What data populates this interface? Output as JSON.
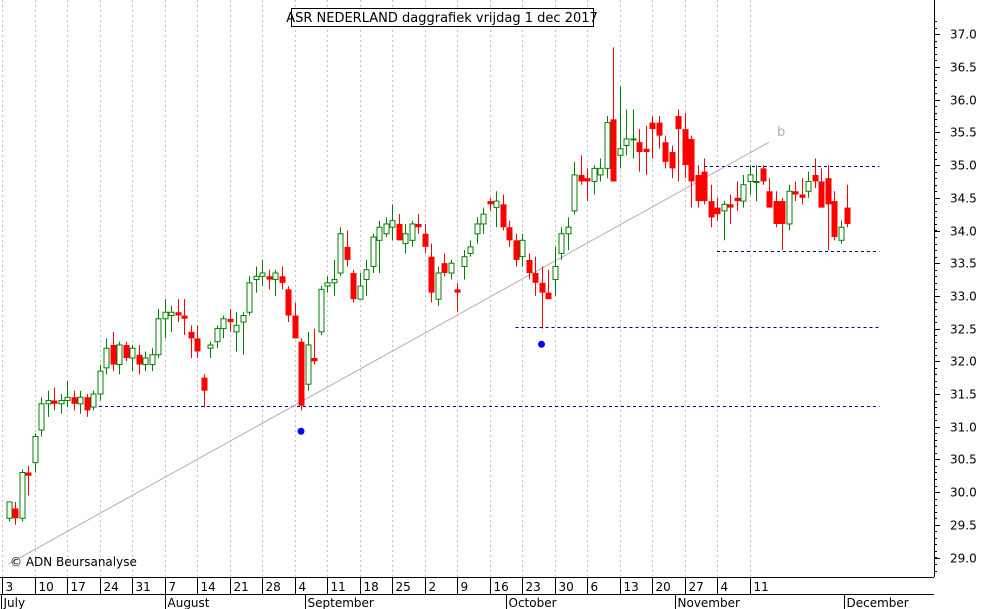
{
  "chart_data": {
    "type": "candlestick",
    "title": "ASR NEDERLAND daggrafiek vrijdag 1 dec 2017",
    "copyright": "© ADN Beursanalyse",
    "ylim": [
      28.7,
      37.35
    ],
    "y_ticks": [
      "29.0",
      "29.5",
      "30.0",
      "30.5",
      "31.0",
      "31.5",
      "32.0",
      "32.5",
      "33.0",
      "33.5",
      "34.0",
      "34.5",
      "35.0",
      "35.5",
      "36.0",
      "36.5",
      "37.0"
    ],
    "x_day_labels": [
      "3",
      "10",
      "17",
      "24",
      "31",
      "7",
      "14",
      "21",
      "28",
      "4",
      "11",
      "18",
      "25",
      "2",
      "9",
      "16",
      "23",
      "30",
      "6",
      "13",
      "20",
      "27",
      "4",
      "11"
    ],
    "months": [
      "July",
      "August",
      "September",
      "October",
      "November",
      "December"
    ],
    "annotation_label": "b",
    "colors": {
      "up_border": "#008000",
      "down_fill": "#ff0000",
      "marker": "#0000ff",
      "trend": "#b0b0b0",
      "level": "#000080",
      "grid": "#c0c0c0"
    },
    "trend_line": [
      [
        0,
        28.9
      ],
      [
        117,
        35.35
      ]
    ],
    "horizontal_levels": [
      {
        "value": 31.32,
        "from": 13,
        "to": 134
      },
      {
        "value": 32.52,
        "from": 78,
        "to": 134
      },
      {
        "value": 34.98,
        "from": 107,
        "to": 134
      },
      {
        "value": 33.68,
        "from": 109,
        "to": 134
      }
    ],
    "markers": [
      {
        "day": 45,
        "value": 30.93
      },
      {
        "day": 82,
        "value": 32.26
      }
    ],
    "candles": [
      [
        0,
        29.6,
        29.85,
        29.55,
        29.85
      ],
      [
        1,
        29.75,
        29.85,
        29.5,
        29.6
      ],
      [
        2,
        29.6,
        30.35,
        29.55,
        30.3
      ],
      [
        3,
        30.3,
        30.4,
        29.95,
        30.25
      ],
      [
        4,
        30.45,
        30.9,
        30.3,
        30.85
      ],
      [
        5,
        30.95,
        31.45,
        30.85,
        31.35
      ],
      [
        6,
        31.35,
        31.55,
        31.15,
        31.4
      ],
      [
        7,
        31.4,
        31.6,
        31.25,
        31.35
      ],
      [
        8,
        31.35,
        31.5,
        31.2,
        31.4
      ],
      [
        9,
        31.4,
        31.7,
        31.3,
        31.45
      ],
      [
        10,
        31.45,
        31.55,
        31.25,
        31.35
      ],
      [
        11,
        31.35,
        31.55,
        31.2,
        31.45
      ],
      [
        12,
        31.45,
        31.5,
        31.15,
        31.25
      ],
      [
        13,
        31.3,
        31.55,
        31.25,
        31.5
      ],
      [
        14,
        31.5,
        31.95,
        31.4,
        31.85
      ],
      [
        15,
        31.9,
        32.35,
        31.8,
        32.2
      ],
      [
        16,
        32.25,
        32.45,
        31.85,
        31.95
      ],
      [
        17,
        31.95,
        32.3,
        31.8,
        32.25
      ],
      [
        18,
        32.25,
        32.3,
        32.0,
        32.05
      ],
      [
        19,
        32.05,
        32.25,
        31.85,
        32.2
      ],
      [
        20,
        32.1,
        32.25,
        31.8,
        31.95
      ],
      [
        21,
        31.95,
        32.15,
        31.85,
        32.05
      ],
      [
        22,
        31.95,
        32.2,
        31.85,
        32.1
      ],
      [
        23,
        32.1,
        32.8,
        32.05,
        32.65
      ],
      [
        24,
        32.65,
        32.95,
        32.35,
        32.75
      ],
      [
        25,
        32.7,
        32.85,
        32.45,
        32.75
      ],
      [
        26,
        32.75,
        32.95,
        32.6,
        32.7
      ],
      [
        27,
        32.7,
        32.95,
        32.4,
        32.65
      ],
      [
        28,
        32.45,
        32.55,
        32.05,
        32.35
      ],
      [
        29,
        32.35,
        32.55,
        32.05,
        32.15
      ],
      [
        30,
        31.75,
        31.8,
        31.3,
        31.55
      ],
      [
        31,
        32.2,
        32.3,
        32.05,
        32.25
      ],
      [
        32,
        32.3,
        32.55,
        32.2,
        32.5
      ],
      [
        33,
        32.5,
        32.7,
        32.35,
        32.65
      ],
      [
        34,
        32.65,
        32.8,
        32.45,
        32.6
      ],
      [
        35,
        32.45,
        32.75,
        32.15,
        32.55
      ],
      [
        36,
        32.6,
        32.75,
        32.1,
        32.7
      ],
      [
        37,
        32.75,
        33.3,
        32.7,
        33.2
      ],
      [
        38,
        33.25,
        33.45,
        33.05,
        33.3
      ],
      [
        39,
        33.3,
        33.55,
        33.15,
        33.35
      ],
      [
        40,
        33.3,
        33.4,
        33.1,
        33.25
      ],
      [
        41,
        33.25,
        33.4,
        33.0,
        33.35
      ],
      [
        42,
        33.3,
        33.45,
        33.1,
        33.2
      ],
      [
        43,
        33.1,
        33.15,
        32.6,
        32.7
      ],
      [
        44,
        32.7,
        32.9,
        32.35,
        32.35
      ],
      [
        45,
        32.3,
        32.35,
        31.25,
        31.32
      ],
      [
        46,
        31.65,
        32.45,
        31.55,
        32.25
      ],
      [
        47,
        32.05,
        32.5,
        31.95,
        32.0
      ],
      [
        48,
        32.45,
        33.15,
        32.4,
        33.1
      ],
      [
        49,
        33.15,
        33.3,
        33.05,
        33.2
      ],
      [
        50,
        33.2,
        33.55,
        33.0,
        33.25
      ],
      [
        51,
        33.35,
        34.05,
        33.3,
        33.95
      ],
      [
        52,
        33.75,
        34.0,
        33.45,
        33.55
      ],
      [
        53,
        33.35,
        33.4,
        32.9,
        32.95
      ],
      [
        54,
        32.95,
        33.35,
        32.95,
        33.15
      ],
      [
        55,
        33.25,
        33.55,
        33.0,
        33.4
      ],
      [
        56,
        33.45,
        33.95,
        33.35,
        33.9
      ],
      [
        57,
        33.85,
        34.15,
        33.35,
        34.05
      ],
      [
        58,
        33.95,
        34.2,
        33.9,
        34.1
      ],
      [
        59,
        34.05,
        34.4,
        33.85,
        34.15
      ],
      [
        60,
        34.1,
        34.25,
        33.85,
        33.85
      ],
      [
        61,
        33.8,
        34.1,
        33.65,
        33.95
      ],
      [
        62,
        33.85,
        34.15,
        33.75,
        34.1
      ],
      [
        63,
        34.1,
        34.25,
        33.95,
        34.05
      ],
      [
        64,
        33.95,
        34.1,
        33.65,
        33.75
      ],
      [
        65,
        33.6,
        33.8,
        32.9,
        33.05
      ],
      [
        66,
        32.95,
        33.45,
        32.85,
        33.35
      ],
      [
        67,
        33.5,
        33.65,
        33.3,
        33.35
      ],
      [
        68,
        33.35,
        33.55,
        33.25,
        33.5
      ],
      [
        69,
        33.1,
        33.2,
        32.75,
        33.05
      ],
      [
        70,
        33.45,
        33.7,
        33.25,
        33.6
      ],
      [
        71,
        33.65,
        33.85,
        33.6,
        33.75
      ],
      [
        72,
        33.95,
        34.2,
        33.8,
        34.1
      ],
      [
        73,
        34.1,
        34.35,
        33.95,
        34.25
      ],
      [
        74,
        34.45,
        34.5,
        34.3,
        34.4
      ],
      [
        75,
        34.35,
        34.6,
        34.05,
        34.45
      ],
      [
        76,
        34.4,
        34.55,
        34.0,
        34.05
      ],
      [
        77,
        34.05,
        34.15,
        33.75,
        33.85
      ],
      [
        78,
        33.85,
        33.95,
        33.45,
        33.55
      ],
      [
        79,
        33.6,
        33.95,
        33.45,
        33.85
      ],
      [
        80,
        33.55,
        33.65,
        33.25,
        33.35
      ],
      [
        81,
        33.35,
        33.6,
        33.0,
        33.2
      ],
      [
        82,
        33.2,
        33.45,
        32.5,
        33.05
      ],
      [
        83,
        33.05,
        33.4,
        32.95,
        32.95
      ],
      [
        84,
        33.25,
        33.75,
        33.0,
        33.45
      ],
      [
        85,
        33.65,
        34.05,
        33.55,
        33.95
      ],
      [
        86,
        33.95,
        34.2,
        33.7,
        34.05
      ],
      [
        87,
        34.3,
        35.05,
        34.25,
        34.85
      ],
      [
        88,
        34.85,
        35.15,
        34.7,
        34.75
      ],
      [
        89,
        34.8,
        34.95,
        34.45,
        34.75
      ],
      [
        90,
        34.75,
        35.0,
        34.55,
        34.95
      ],
      [
        91,
        34.85,
        35.1,
        34.75,
        34.95
      ],
      [
        92,
        34.95,
        35.75,
        34.8,
        35.65
      ],
      [
        93,
        35.7,
        36.8,
        34.75,
        34.75
      ],
      [
        94,
        35.15,
        36.2,
        34.95,
        35.25
      ],
      [
        95,
        35.3,
        35.85,
        35.15,
        35.4
      ],
      [
        96,
        35.4,
        35.85,
        35.1,
        35.4
      ],
      [
        97,
        35.35,
        35.55,
        34.9,
        35.2
      ],
      [
        98,
        35.25,
        35.6,
        34.85,
        35.2
      ],
      [
        99,
        35.65,
        35.75,
        35.1,
        35.55
      ],
      [
        100,
        35.65,
        35.75,
        35.25,
        35.45
      ],
      [
        101,
        35.35,
        35.45,
        34.95,
        35.05
      ],
      [
        102,
        35.2,
        35.3,
        34.8,
        34.95
      ],
      [
        103,
        35.75,
        35.85,
        34.75,
        35.55
      ],
      [
        104,
        35.55,
        35.8,
        34.8,
        35.0
      ],
      [
        105,
        35.4,
        35.45,
        34.35,
        34.75
      ],
      [
        106,
        34.85,
        35.0,
        34.35,
        34.45
      ],
      [
        107,
        34.9,
        35.1,
        34.4,
        34.45
      ],
      [
        108,
        34.45,
        34.7,
        34.05,
        34.2
      ],
      [
        109,
        34.35,
        34.5,
        34.15,
        34.25
      ],
      [
        110,
        34.3,
        34.45,
        33.85,
        34.4
      ],
      [
        111,
        34.4,
        34.55,
        34.1,
        34.35
      ],
      [
        112,
        34.5,
        34.75,
        34.3,
        34.45
      ],
      [
        113,
        34.45,
        34.85,
        34.35,
        34.7
      ],
      [
        114,
        34.75,
        35.0,
        34.55,
        34.85
      ],
      [
        115,
        34.75,
        35.0,
        34.45,
        34.75
      ],
      [
        116,
        34.95,
        35.0,
        34.7,
        34.75
      ],
      [
        117,
        34.6,
        34.8,
        34.35,
        34.35
      ],
      [
        118,
        34.45,
        34.6,
        34.05,
        34.1
      ],
      [
        119,
        34.45,
        34.5,
        33.7,
        34.1
      ],
      [
        120,
        34.1,
        34.7,
        34.0,
        34.6
      ],
      [
        121,
        34.6,
        34.75,
        34.45,
        34.55
      ],
      [
        122,
        34.55,
        34.8,
        34.4,
        34.5
      ],
      [
        123,
        34.6,
        34.9,
        34.5,
        34.75
      ],
      [
        124,
        34.85,
        35.1,
        34.65,
        34.75
      ],
      [
        125,
        34.75,
        34.95,
        34.35,
        34.35
      ],
      [
        126,
        34.8,
        35.0,
        33.7,
        34.4
      ],
      [
        127,
        34.45,
        34.6,
        33.85,
        33.9
      ],
      [
        128,
        33.85,
        34.15,
        33.8,
        34.05
      ],
      [
        129,
        34.35,
        34.7,
        34.05,
        34.1
      ]
    ]
  }
}
